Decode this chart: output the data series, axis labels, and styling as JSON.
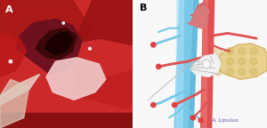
{
  "figure_bg": "#ffffff",
  "left_panel": {
    "label": "A",
    "label_color": "#ffffff",
    "label_fontsize": 8,
    "label_fontweight": "bold"
  },
  "right_panel": {
    "label": "B",
    "label_color": "#000000",
    "label_fontsize": 8,
    "label_fontweight": "bold",
    "bg_color": "#ffffff",
    "signature": "A. Lipulus",
    "signature_fontsize": 4.5,
    "signature_color": "#5555aa"
  }
}
